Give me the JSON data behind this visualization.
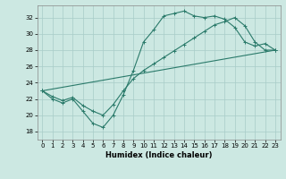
{
  "xlabel": "Humidex (Indice chaleur)",
  "bg_color": "#cce8e2",
  "line_color": "#2a7a6a",
  "grid_color": "#a8ccc8",
  "xlim": [
    -0.5,
    23.5
  ],
  "ylim": [
    17,
    33.5
  ],
  "xticks": [
    0,
    1,
    2,
    3,
    4,
    5,
    6,
    7,
    8,
    9,
    10,
    11,
    12,
    13,
    14,
    15,
    16,
    17,
    18,
    19,
    20,
    21,
    22,
    23
  ],
  "yticks": [
    18,
    20,
    22,
    24,
    26,
    28,
    30,
    32
  ],
  "line1_x": [
    0,
    1,
    2,
    3,
    4,
    5,
    6,
    7,
    8,
    9,
    10,
    11,
    12,
    13,
    14,
    15,
    16,
    17,
    18,
    19,
    20,
    21,
    22,
    23
  ],
  "line1_y": [
    23,
    22,
    21.5,
    22,
    20.5,
    19,
    18.5,
    20,
    22.5,
    25.5,
    29,
    30.5,
    32.2,
    32.5,
    32.8,
    32.2,
    32.0,
    32.2,
    31.8,
    30.8,
    29,
    28.5,
    28.8,
    28
  ],
  "line2_x": [
    0,
    1,
    2,
    3,
    4,
    5,
    6,
    7,
    8,
    9,
    10,
    11,
    12,
    13,
    14,
    15,
    16,
    17,
    18,
    19,
    20,
    21,
    22,
    23
  ],
  "line2_y": [
    23,
    22.3,
    21.8,
    22.2,
    21.2,
    20.5,
    20.0,
    21.3,
    23.0,
    24.5,
    25.5,
    26.3,
    27.1,
    27.9,
    28.7,
    29.5,
    30.3,
    31.1,
    31.5,
    32.0,
    31.0,
    29.0,
    28.0,
    28
  ],
  "line3_x": [
    0,
    23
  ],
  "line3_y": [
    23,
    28
  ]
}
